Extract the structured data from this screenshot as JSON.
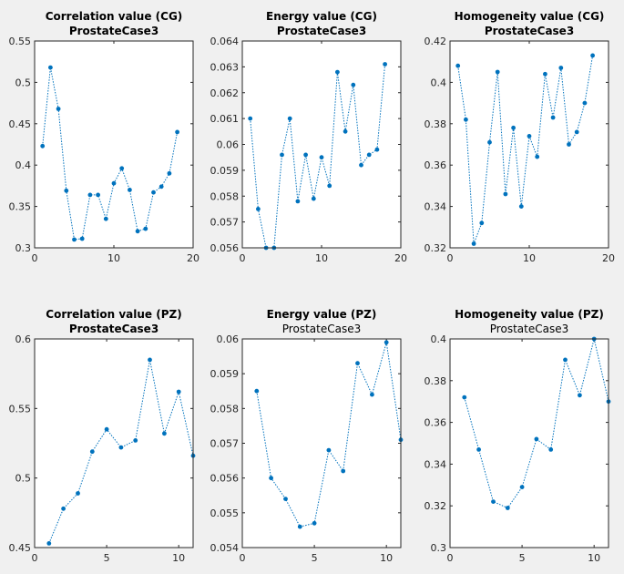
{
  "chart_data": [
    {
      "type": "line",
      "title": "Correlation value (CG)",
      "subtitle": "ProstateCase3",
      "title_bold": true,
      "subtitle_bold": true,
      "xlim": [
        0,
        20
      ],
      "ylim": [
        0.3,
        0.55
      ],
      "xticks": [
        0,
        10,
        20
      ],
      "yticks": [
        0.3,
        0.35,
        0.4,
        0.45,
        0.5,
        0.55
      ],
      "xtick_labels": [
        "0",
        "10",
        "20"
      ],
      "ytick_labels": [
        "0.3",
        "0.35",
        "0.4",
        "0.45",
        "0.5",
        "0.55"
      ],
      "x": [
        1,
        2,
        3,
        4,
        5,
        6,
        7,
        8,
        9,
        10,
        11,
        12,
        13,
        14,
        15,
        16,
        17,
        18
      ],
      "y": [
        0.423,
        0.518,
        0.468,
        0.369,
        0.31,
        0.311,
        0.364,
        0.364,
        0.335,
        0.378,
        0.396,
        0.37,
        0.32,
        0.323,
        0.367,
        0.374,
        0.39,
        0.44
      ],
      "color": "#0072bd"
    },
    {
      "type": "line",
      "title": "Energy value (CG)",
      "subtitle": "ProstateCase3",
      "title_bold": true,
      "subtitle_bold": true,
      "xlim": [
        0,
        20
      ],
      "ylim": [
        0.056,
        0.064
      ],
      "xticks": [
        0,
        10,
        20
      ],
      "yticks": [
        0.056,
        0.057,
        0.058,
        0.059,
        0.06,
        0.061,
        0.062,
        0.063,
        0.064
      ],
      "xtick_labels": [
        "0",
        "10",
        "20"
      ],
      "ytick_labels": [
        "0.056",
        "0.057",
        "0.058",
        "0.059",
        "0.06",
        "0.061",
        "0.062",
        "0.063",
        "0.064"
      ],
      "x": [
        1,
        2,
        3,
        4,
        5,
        6,
        7,
        8,
        9,
        10,
        11,
        12,
        13,
        14,
        15,
        16,
        17,
        18
      ],
      "y": [
        0.061,
        0.0575,
        0.056,
        0.056,
        0.0596,
        0.061,
        0.0578,
        0.0596,
        0.0579,
        0.0595,
        0.0584,
        0.0628,
        0.0605,
        0.0623,
        0.0592,
        0.0596,
        0.0598,
        0.0631
      ],
      "color": "#0072bd"
    },
    {
      "type": "line",
      "title": "Homogeneity value (CG)",
      "subtitle": "ProstateCase3",
      "title_bold": true,
      "subtitle_bold": true,
      "xlim": [
        0,
        20
      ],
      "ylim": [
        0.32,
        0.42
      ],
      "xticks": [
        0,
        10,
        20
      ],
      "yticks": [
        0.32,
        0.34,
        0.36,
        0.38,
        0.4,
        0.42
      ],
      "xtick_labels": [
        "0",
        "10",
        "20"
      ],
      "ytick_labels": [
        "0.32",
        "0.34",
        "0.36",
        "0.38",
        "0.4",
        "0.42"
      ],
      "x": [
        1,
        2,
        3,
        4,
        5,
        6,
        7,
        8,
        9,
        10,
        11,
        12,
        13,
        14,
        15,
        16,
        17,
        18
      ],
      "y": [
        0.408,
        0.382,
        0.322,
        0.332,
        0.371,
        0.405,
        0.346,
        0.378,
        0.34,
        0.374,
        0.364,
        0.404,
        0.383,
        0.407,
        0.37,
        0.376,
        0.39,
        0.413
      ],
      "color": "#0072bd"
    },
    {
      "type": "line",
      "title": "Correlation value (PZ)",
      "subtitle": "ProstateCase3",
      "title_bold": true,
      "subtitle_bold": true,
      "xlim": [
        0,
        11
      ],
      "ylim": [
        0.45,
        0.6
      ],
      "xticks": [
        0,
        5,
        10
      ],
      "yticks": [
        0.45,
        0.5,
        0.55,
        0.6
      ],
      "xtick_labels": [
        "0",
        "5",
        "10"
      ],
      "ytick_labels": [
        "0.45",
        "0.5",
        "0.55",
        "0.6"
      ],
      "x": [
        1,
        2,
        3,
        4,
        5,
        6,
        7,
        8,
        9,
        10,
        11
      ],
      "y": [
        0.453,
        0.478,
        0.489,
        0.519,
        0.535,
        0.522,
        0.527,
        0.585,
        0.532,
        0.562,
        0.516
      ],
      "color": "#0072bd"
    },
    {
      "type": "line",
      "title": "Energy value (PZ)",
      "subtitle": "ProstateCase3",
      "title_bold": true,
      "subtitle_bold": false,
      "xlim": [
        0,
        11
      ],
      "ylim": [
        0.054,
        0.06
      ],
      "xticks": [
        0,
        5,
        10
      ],
      "yticks": [
        0.054,
        0.055,
        0.056,
        0.057,
        0.058,
        0.059,
        0.06
      ],
      "xtick_labels": [
        "0",
        "5",
        "10"
      ],
      "ytick_labels": [
        "0.054",
        "0.055",
        "0.056",
        "0.057",
        "0.058",
        "0.059",
        "0.06"
      ],
      "x": [
        1,
        2,
        3,
        4,
        5,
        6,
        7,
        8,
        9,
        10,
        11
      ],
      "y": [
        0.0585,
        0.056,
        0.0554,
        0.0546,
        0.0547,
        0.0568,
        0.0562,
        0.0593,
        0.0584,
        0.0599,
        0.0571
      ],
      "color": "#0072bd"
    },
    {
      "type": "line",
      "title": "Homogeneity value (PZ)",
      "subtitle": "ProstateCase3",
      "title_bold": true,
      "subtitle_bold": false,
      "xlim": [
        0,
        11
      ],
      "ylim": [
        0.3,
        0.4
      ],
      "xticks": [
        0,
        5,
        10
      ],
      "yticks": [
        0.3,
        0.32,
        0.34,
        0.36,
        0.38,
        0.4
      ],
      "xtick_labels": [
        "0",
        "5",
        "10"
      ],
      "ytick_labels": [
        "0.3",
        "0.32",
        "0.34",
        "0.36",
        "0.38",
        "0.4"
      ],
      "x": [
        1,
        2,
        3,
        4,
        5,
        6,
        7,
        8,
        9,
        10,
        11
      ],
      "y": [
        0.372,
        0.347,
        0.322,
        0.319,
        0.329,
        0.352,
        0.347,
        0.39,
        0.373,
        0.4,
        0.37
      ],
      "color": "#0072bd"
    }
  ]
}
